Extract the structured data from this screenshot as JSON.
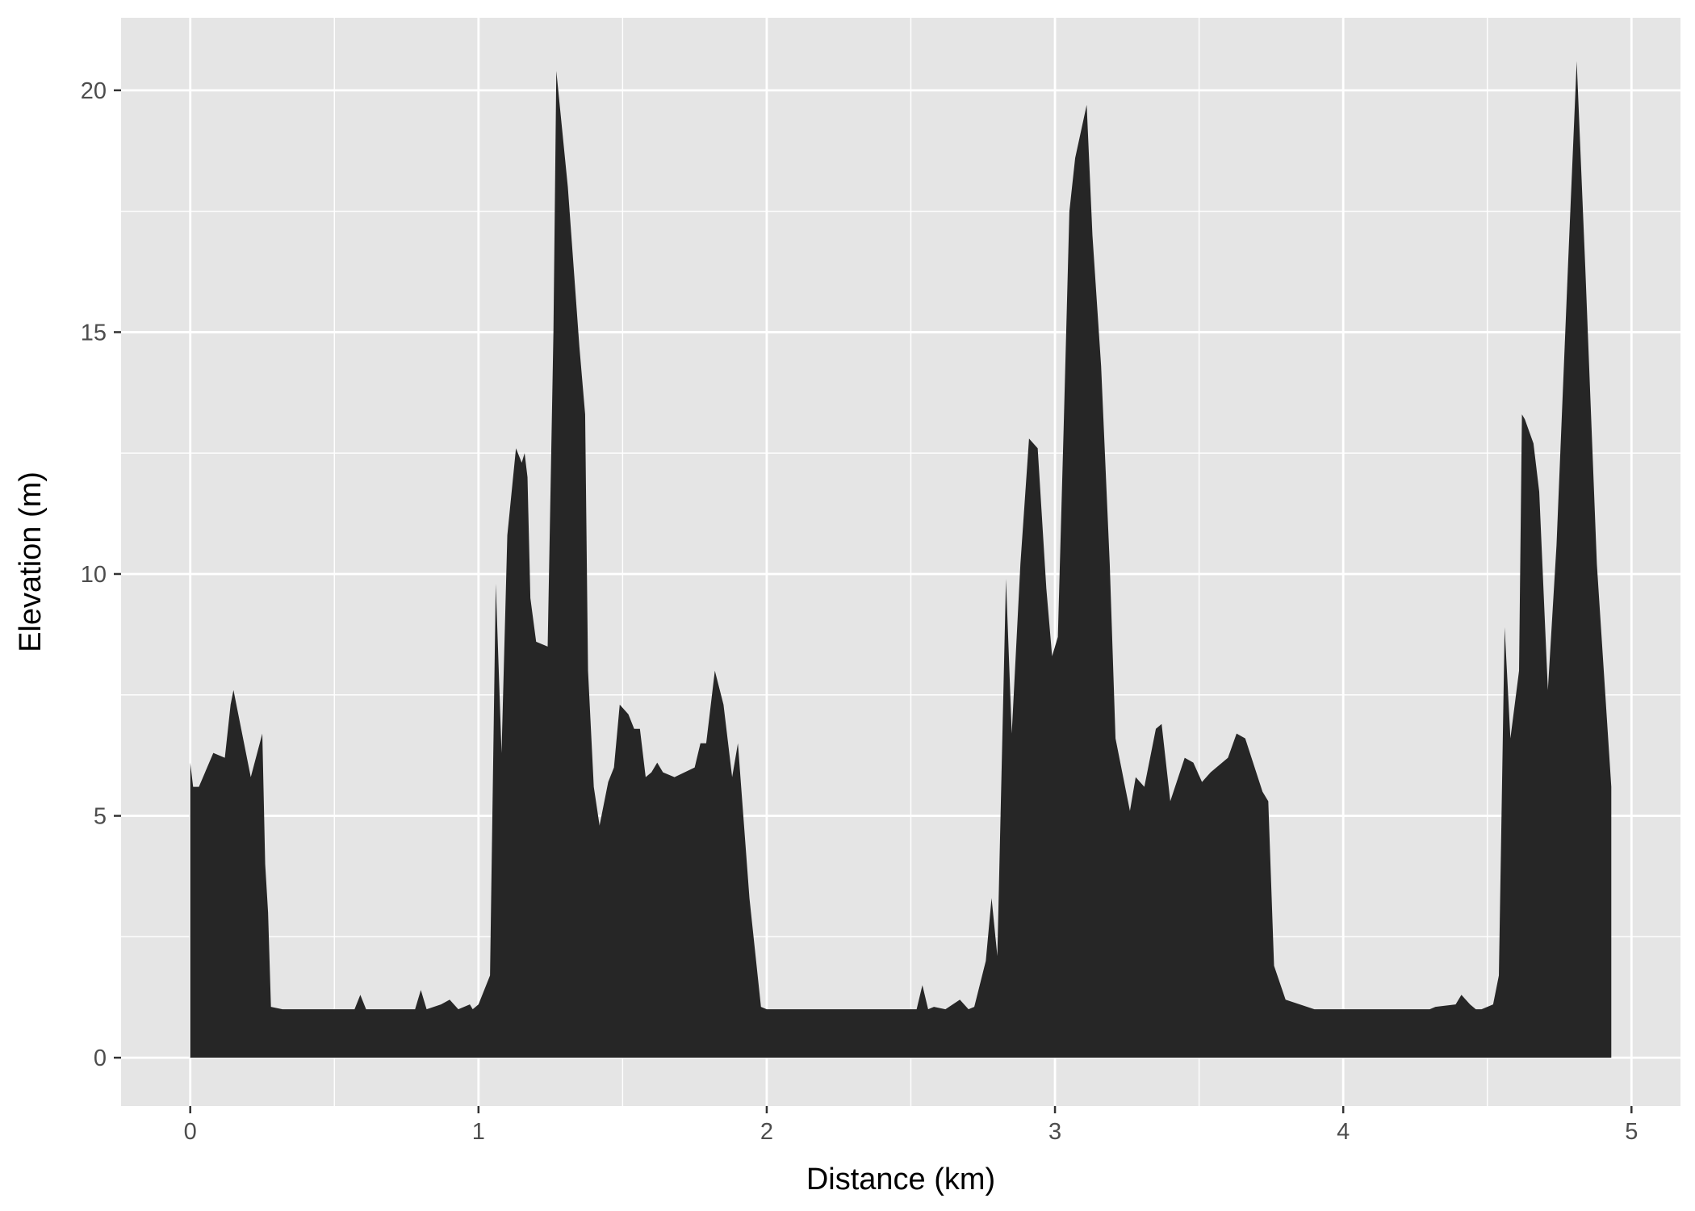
{
  "chart_data": {
    "type": "area",
    "title": "",
    "xlabel": "Distance (km)",
    "ylabel": "Elevation (m)",
    "xlim": [
      -0.24,
      5.17
    ],
    "ylim": [
      -1.0,
      21.5
    ],
    "x_ticks": [
      0,
      1,
      2,
      3,
      4,
      5
    ],
    "y_ticks": [
      0,
      5,
      10,
      15,
      20
    ],
    "grid": true,
    "legend": "none",
    "colors": {
      "panel": "#e5e5e5",
      "grid": "#ffffff",
      "fill": "#262626"
    },
    "series": [
      {
        "x": [
          0,
          0.01,
          0.03,
          0.08,
          0.12,
          0.14,
          0.15,
          0.17,
          0.21,
          0.25,
          0.26,
          0.27,
          0.28,
          0.32,
          0.35,
          0.4,
          0.5,
          0.57,
          0.59,
          0.61,
          0.7,
          0.78,
          0.8,
          0.82,
          0.87,
          0.9,
          0.93,
          0.97,
          0.98,
          1.0,
          1.04,
          1.06,
          1.08,
          1.1,
          1.13,
          1.15,
          1.16,
          1.17,
          1.18,
          1.2,
          1.24,
          1.26,
          1.27,
          1.31,
          1.35,
          1.37,
          1.38,
          1.4,
          1.42,
          1.45,
          1.47,
          1.49,
          1.52,
          1.54,
          1.56,
          1.58,
          1.6,
          1.62,
          1.64,
          1.68,
          1.75,
          1.77,
          1.79,
          1.82,
          1.85,
          1.88,
          1.9,
          1.94,
          1.98,
          2.0,
          2.02,
          2.05,
          2.07,
          2.2,
          2.4,
          2.48,
          2.52,
          2.54,
          2.56,
          2.58,
          2.62,
          2.67,
          2.7,
          2.72,
          2.76,
          2.78,
          2.8,
          2.83,
          2.85,
          2.88,
          2.91,
          2.94,
          2.97,
          2.99,
          3.01,
          3.03,
          3.05,
          3.07,
          3.11,
          3.13,
          3.16,
          3.19,
          3.21,
          3.24,
          3.26,
          3.28,
          3.31,
          3.35,
          3.37,
          3.4,
          3.45,
          3.48,
          3.51,
          3.54,
          3.58,
          3.6,
          3.63,
          3.66,
          3.72,
          3.74,
          3.76,
          3.8,
          3.9,
          4.0,
          4.1,
          4.3,
          4.32,
          4.39,
          4.41,
          4.44,
          4.46,
          4.48,
          4.52,
          4.54,
          4.56,
          4.58,
          4.61,
          4.62,
          4.63,
          4.66,
          4.68,
          4.71,
          4.74,
          4.78,
          4.81,
          4.84,
          4.88,
          4.93
        ],
        "y": [
          6.1,
          5.6,
          5.6,
          6.3,
          6.2,
          7.3,
          7.6,
          7.0,
          5.8,
          6.7,
          4.0,
          3.0,
          1.05,
          1.0,
          1.0,
          1.0,
          1.0,
          1.0,
          1.3,
          1.0,
          1.0,
          1.0,
          1.4,
          1.0,
          1.1,
          1.2,
          1.0,
          1.1,
          1.0,
          1.1,
          1.7,
          9.8,
          6.3,
          10.8,
          12.6,
          12.3,
          12.5,
          12.0,
          9.5,
          8.6,
          8.5,
          15.0,
          20.4,
          18.0,
          14.7,
          13.3,
          8.0,
          5.6,
          4.8,
          5.7,
          6.0,
          7.3,
          7.1,
          6.8,
          6.8,
          5.8,
          5.9,
          6.1,
          5.9,
          5.8,
          6.0,
          6.5,
          6.5,
          8.0,
          7.3,
          5.8,
          6.5,
          3.3,
          1.05,
          1.0,
          1.0,
          1.0,
          1.0,
          1.0,
          1.0,
          1.0,
          1.0,
          1.5,
          1.0,
          1.05,
          1.0,
          1.2,
          1.0,
          1.05,
          2.0,
          3.3,
          2.1,
          9.9,
          6.7,
          10.2,
          12.8,
          12.6,
          9.7,
          8.3,
          8.7,
          13.0,
          17.5,
          18.6,
          19.7,
          17.0,
          14.3,
          10.2,
          6.6,
          5.7,
          5.1,
          5.8,
          5.6,
          6.8,
          6.9,
          5.3,
          6.2,
          6.1,
          5.7,
          5.9,
          6.1,
          6.2,
          6.7,
          6.6,
          5.5,
          5.3,
          1.9,
          1.2,
          1.0,
          1.0,
          1.0,
          1.0,
          1.05,
          1.1,
          1.3,
          1.1,
          1.0,
          1.0,
          1.1,
          1.7,
          8.9,
          6.6,
          8.0,
          13.3,
          13.2,
          12.7,
          11.7,
          7.6,
          10.6,
          16.4,
          20.6,
          16.3,
          10.2,
          5.6
        ]
      }
    ]
  }
}
